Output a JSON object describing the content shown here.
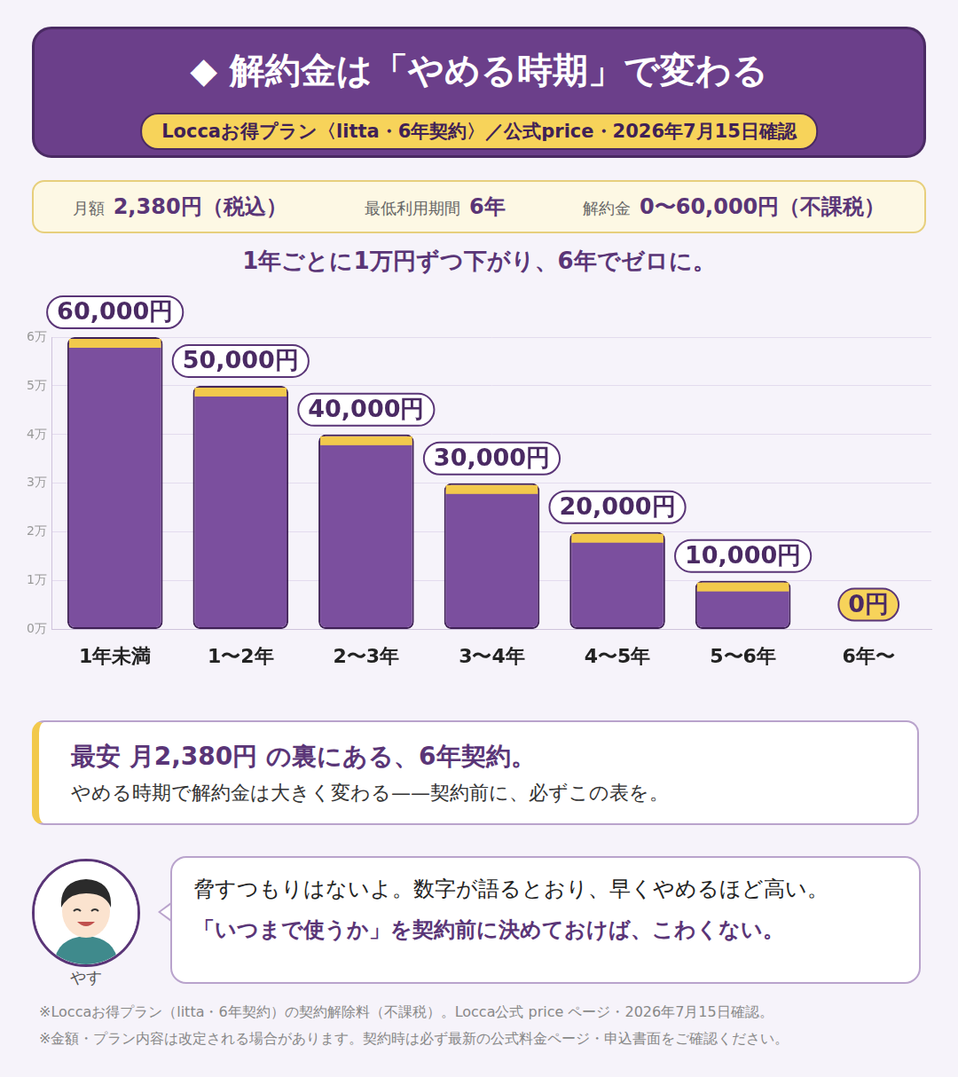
{
  "header": {
    "title": "◆ 解約金は「やめる時期」で変わる",
    "subtitle": "Loccaお得プラン〈litta・6年契約〉／公式price・2026年7月15日確認"
  },
  "summary": [
    {
      "label": "月額",
      "value": "2,380円（税込）"
    },
    {
      "label": "最低利用期間",
      "value": "6年"
    },
    {
      "label": "解約金",
      "value": "0〜60,000円（不課税）"
    }
  ],
  "chart_data": {
    "type": "bar",
    "title": "1年ごとに1万円ずつ下がり、6年でゼロに。",
    "categories": [
      "1年未満",
      "1〜2年",
      "2〜3年",
      "3〜4年",
      "4〜5年",
      "5〜6年",
      "6年〜"
    ],
    "values": [
      60000,
      50000,
      40000,
      30000,
      20000,
      10000,
      0
    ],
    "value_labels": [
      "60,000円",
      "50,000円",
      "40,000円",
      "30,000円",
      "20,000円",
      "10,000円",
      "0円"
    ],
    "color": "#7b4f9e",
    "ylim": [
      0,
      60000
    ],
    "yticks": [
      {
        "value": 0,
        "label": "0万"
      },
      {
        "value": 10000,
        "label": "1万"
      },
      {
        "value": 20000,
        "label": "2万"
      },
      {
        "value": 30000,
        "label": "3万"
      },
      {
        "value": 40000,
        "label": "4万"
      },
      {
        "value": 50000,
        "label": "5万"
      },
      {
        "value": 60000,
        "label": "6万"
      }
    ],
    "grid": true,
    "data_labels": true
  },
  "callout": {
    "title": "最安 月2,380円 の裏にある、6年契約。",
    "text": "やめる時期で解約金は大きく変わる——契約前に、必ずこの表を。"
  },
  "speech": {
    "speaker": "やす",
    "lines": [
      "脅すつもりはないよ。数字が語るとおり、早くやめるほど高い。",
      "「いつまで使うか」を契約前に決めておけば、こわくない。"
    ]
  },
  "footnotes": [
    "※Loccaお得プラン（litta・6年契約）の契約解除料（不課税）。Locca公式 price ページ・2026年7月15日確認。",
    "※金額・プラン内容は改定される場合があります。契約時は必ず最新の公式料金ページ・申込書面をご確認ください。"
  ]
}
